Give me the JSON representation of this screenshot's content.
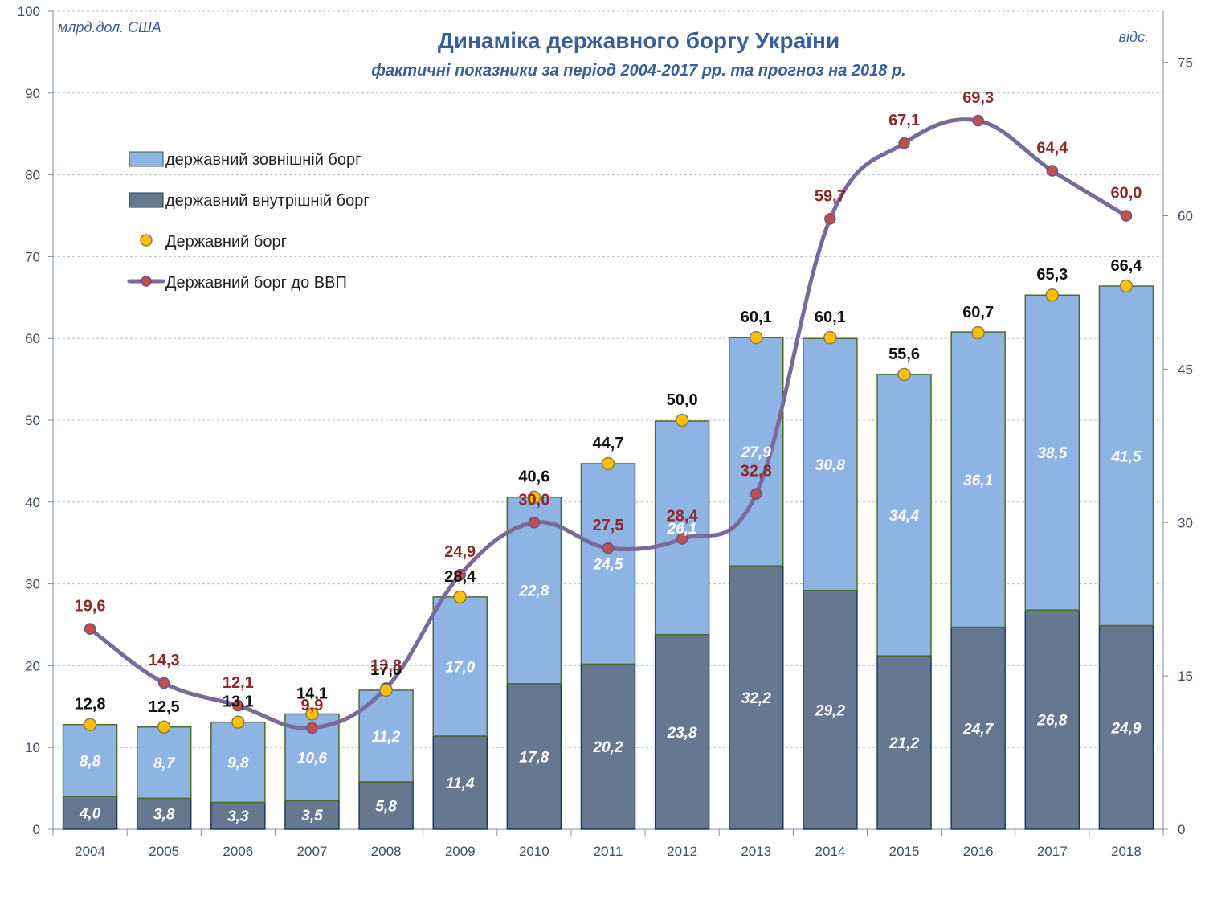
{
  "chart_data": {
    "type": "bar",
    "title": "Динаміка державного боргу України",
    "subtitle": "фактичні показники за період  2004-2017 рр. та прогноз на 2018  р.",
    "left_unit": "млрд.дол. США",
    "right_unit": "відс.",
    "categories": [
      "2004",
      "2005",
      "2006",
      "2007",
      "2008",
      "2009",
      "2010",
      "2011",
      "2012",
      "2013",
      "2014",
      "2015",
      "2016",
      "2017",
      "2018"
    ],
    "y_left": {
      "min": 0,
      "max": 100,
      "ticks": [
        0,
        10,
        20,
        30,
        40,
        50,
        60,
        70,
        80,
        90,
        100
      ]
    },
    "y_right": {
      "min": 0,
      "max": 80,
      "ticks": [
        0,
        15,
        30,
        45,
        60,
        75
      ]
    },
    "series": [
      {
        "name": "державний внутрішній борг",
        "kind": "stacked-bar",
        "axis": "left",
        "color": "#66788f",
        "values": [
          4.0,
          3.8,
          3.3,
          3.5,
          5.8,
          11.4,
          17.8,
          20.2,
          23.8,
          32.2,
          29.2,
          21.2,
          24.7,
          26.8,
          24.9
        ],
        "labels": [
          "4,0",
          "3,8",
          "3,3",
          "3,5",
          "5,8",
          "11,4",
          "17,8",
          "20,2",
          "23,8",
          "32,2",
          "29,2",
          "21,2",
          "24,7",
          "26,8",
          "24,9"
        ]
      },
      {
        "name": "державний зовнішній борг",
        "kind": "stacked-bar",
        "axis": "left",
        "color": "#8eb4e3",
        "values": [
          8.8,
          8.7,
          9.8,
          10.6,
          11.2,
          17.0,
          22.8,
          24.5,
          26.1,
          27.9,
          30.8,
          34.4,
          36.1,
          38.5,
          41.5
        ],
        "labels": [
          "8,8",
          "8,7",
          "9,8",
          "10,6",
          "11,2",
          "17,0",
          "22,8",
          "24,5",
          "26,1",
          "27,9",
          "30,8",
          "34,4",
          "36,1",
          "38,5",
          "41,5"
        ]
      },
      {
        "name": "Державний борг",
        "kind": "marker",
        "axis": "left",
        "color": "#ffc000",
        "values": [
          12.8,
          12.5,
          13.1,
          14.1,
          17.0,
          28.4,
          40.6,
          44.7,
          50.0,
          60.1,
          60.1,
          55.6,
          60.7,
          65.3,
          66.4
        ],
        "labels": [
          "12,8",
          "12,5",
          "13,1",
          "14,1",
          "17,0",
          "28,4",
          "40,6",
          "44,7",
          "50,0",
          "60,1",
          "60,1",
          "55,6",
          "60,7",
          "65,3",
          "66,4"
        ]
      },
      {
        "name": "Державний борг до ВВП",
        "kind": "line",
        "axis": "right",
        "color": "#7a6a99",
        "values": [
          19.6,
          14.3,
          12.1,
          9.9,
          13.8,
          24.9,
          30.0,
          27.5,
          28.4,
          32.8,
          59.7,
          67.1,
          69.3,
          64.4,
          60.0
        ],
        "labels": [
          "19,6",
          "14,3",
          "12,1",
          "9,9",
          "13,8",
          "24,9",
          "30,0",
          "27,5",
          "28,4",
          "32,8",
          "59,7",
          "67,1",
          "69,3",
          "64,4",
          "60,0"
        ]
      }
    ],
    "legend": [
      "державний зовнішній борг",
      "державний внутрішній борг",
      "Державний борг",
      "Державний борг до ВВП"
    ],
    "legend_position": "top-left",
    "grid": true
  }
}
